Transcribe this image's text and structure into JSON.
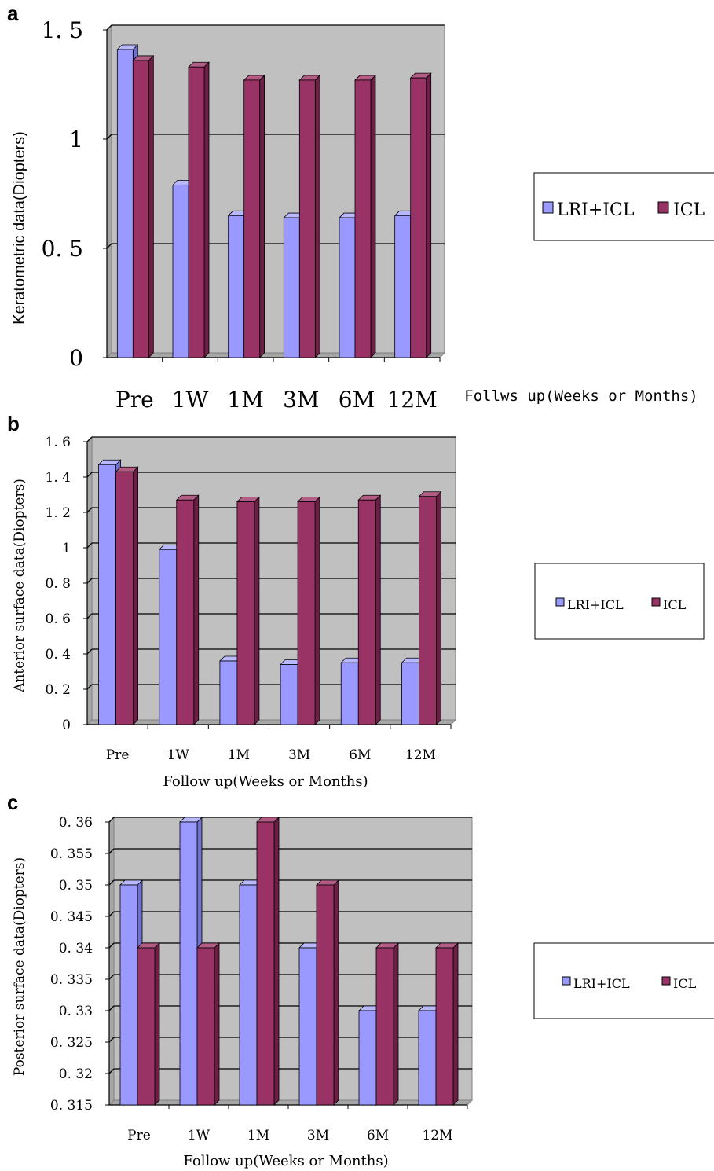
{
  "colors": {
    "lri_front": "#9999ff",
    "lri_top": "#b8b8ff",
    "lri_side": "#6f6fcc",
    "icl_front": "#993366",
    "icl_top": "#b35c85",
    "icl_side": "#6b1f45",
    "plot_bg": "#c0c0c0"
  },
  "chart_data": [
    {
      "type": "bar",
      "panel_label": "a",
      "title": "",
      "ylabel": "Keratometric data(Diopters)",
      "xlabel": "Follws up(Weeks or Months)",
      "categories": [
        "Pre",
        "1W",
        "1M",
        "3M",
        "6M",
        "12M"
      ],
      "ylim": [
        0,
        1.5
      ],
      "yticks": [
        0,
        0.5,
        1,
        1.5
      ],
      "ytick_labels": [
        "0",
        "0. 5",
        "1",
        "1. 5"
      ],
      "grid": true,
      "legend_position": "right",
      "series": [
        {
          "name": "LRI+ICL",
          "values": [
            1.41,
            0.79,
            0.65,
            0.64,
            0.64,
            0.65
          ]
        },
        {
          "name": "ICL",
          "values": [
            1.36,
            1.33,
            1.27,
            1.27,
            1.27,
            1.28
          ]
        }
      ]
    },
    {
      "type": "bar",
      "panel_label": "b",
      "title": "",
      "ylabel": "Anterior surface data(Diopters)",
      "xlabel": "Follow up(Weeks or Months)",
      "categories": [
        "Pre",
        "1W",
        "1M",
        "3M",
        "6M",
        "12M"
      ],
      "ylim": [
        0,
        1.6
      ],
      "yticks": [
        0,
        0.2,
        0.4,
        0.6,
        0.8,
        1,
        1.2,
        1.4,
        1.6
      ],
      "ytick_labels": [
        "0",
        "0. 2",
        "0. 4",
        "0. 6",
        "0. 8",
        "1",
        "1. 2",
        "1. 4",
        "1. 6"
      ],
      "grid": true,
      "legend_position": "right",
      "series": [
        {
          "name": "LRI+ICL",
          "values": [
            1.47,
            0.99,
            0.36,
            0.34,
            0.35,
            0.35
          ]
        },
        {
          "name": "ICL",
          "values": [
            1.43,
            1.27,
            1.26,
            1.26,
            1.27,
            1.29
          ]
        }
      ]
    },
    {
      "type": "bar",
      "panel_label": "c",
      "title": "",
      "ylabel": "Posterior surface data(Diopters)",
      "xlabel": "Follow up(Weeks or Months)",
      "categories": [
        "Pre",
        "1W",
        "1M",
        "3M",
        "6M",
        "12M"
      ],
      "ylim": [
        0.315,
        0.36
      ],
      "yticks": [
        0.315,
        0.32,
        0.325,
        0.33,
        0.335,
        0.34,
        0.345,
        0.35,
        0.355,
        0.36
      ],
      "ytick_labels": [
        "0. 315",
        "0. 32",
        "0. 325",
        "0. 33",
        "0. 335",
        "0. 34",
        "0. 345",
        "0. 35",
        "0. 355",
        "0. 36"
      ],
      "grid": true,
      "legend_position": "right",
      "series": [
        {
          "name": "LRI+ICL",
          "values": [
            0.35,
            0.36,
            0.35,
            0.34,
            0.33,
            0.33
          ]
        },
        {
          "name": "ICL",
          "values": [
            0.34,
            0.34,
            0.36,
            0.35,
            0.34,
            0.34
          ]
        }
      ]
    }
  ]
}
